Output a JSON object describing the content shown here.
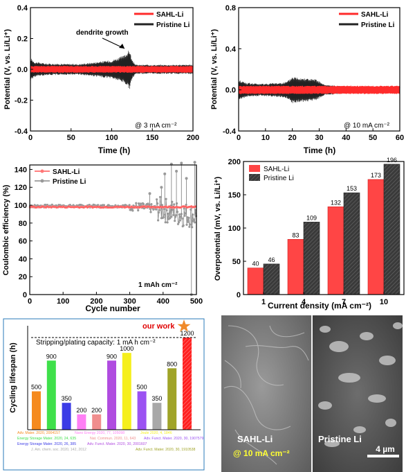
{
  "chart_data": [
    {
      "type": "line",
      "ylabel": "Potential (V, vs. Li/Li⁺)",
      "xlabel": "Time (h)",
      "xlim": [
        0,
        200
      ],
      "ylim": [
        -0.4,
        0.4
      ],
      "xticks": [
        "0",
        "50",
        "100",
        "150",
        "200"
      ],
      "yticks": [
        "-0.4",
        "-0.2",
        "0.0",
        "0.2",
        "0.4"
      ],
      "legend": "top-right",
      "series": [
        {
          "name": "SAHL-Li",
          "color": "#ff2b2b",
          "envelope_amplitude": {
            "x": [
              0,
              50,
              100,
              150,
              200
            ],
            "y": [
              0.022,
              0.022,
              0.022,
              0.022,
              0.022
            ]
          }
        },
        {
          "name": "Pristine Li",
          "color": "#222222",
          "envelope_amplitude": {
            "x": [
              0,
              5,
              20,
              60,
              100,
              115,
              122,
              125,
              130,
              160,
              200
            ],
            "y": [
              0.075,
              0.05,
              0.038,
              0.035,
              0.06,
              0.09,
              0.13,
              0.06,
              0.03,
              0.03,
              0.03
            ]
          }
        }
      ],
      "annotations": [
        "dendrite growth",
        "@ 3 mA cm⁻²"
      ]
    },
    {
      "type": "line",
      "ylabel": "Potential (V, vs. Li/Li⁺)",
      "xlabel": "Time (h)",
      "xlim": [
        0,
        60
      ],
      "ylim": [
        -0.4,
        0.8
      ],
      "xticks": [
        "0",
        "10",
        "20",
        "30",
        "40",
        "50",
        "60"
      ],
      "yticks": [
        "-0.4",
        "0.0",
        "0.4",
        "0.8"
      ],
      "legend": "top-right",
      "series": [
        {
          "name": "SAHL-Li",
          "color": "#ff2b2b",
          "envelope_amplitude": {
            "x": [
              0,
              60
            ],
            "y": [
              0.04,
              0.04
            ]
          }
        },
        {
          "name": "Pristine Li",
          "color": "#222222",
          "envelope_amplitude": {
            "x": [
              0,
              3,
              8,
              15,
              18,
              20,
              24,
              29,
              32,
              40,
              60
            ],
            "y": [
              0.1,
              0.07,
              0.06,
              0.07,
              0.08,
              0.13,
              0.12,
              0.1,
              0.05,
              0.035,
              0.035
            ]
          }
        }
      ],
      "annotations": [
        "@ 10 mA cm⁻²"
      ]
    },
    {
      "type": "scatter",
      "ylabel": "Coulombic efficiency (%)",
      "xlabel": "Cycle number",
      "xlim": [
        0,
        500
      ],
      "ylim": [
        0,
        145
      ],
      "xticks": [
        "0",
        "100",
        "200",
        "300",
        "400",
        "500"
      ],
      "yticks": [
        "0",
        "20",
        "40",
        "60",
        "80",
        "100",
        "120",
        "140"
      ],
      "legend": "top-left",
      "series": [
        {
          "name": "SAHL-Li",
          "color": "#ff5555",
          "trend": {
            "x": [
              0,
              500
            ],
            "y": [
              98,
              98
            ]
          }
        },
        {
          "name": "Pristine Li",
          "color": "#888888",
          "trend": {
            "x": [
              0,
              300,
              350,
              400,
              450,
              500
            ],
            "y": [
              99,
              99,
              97,
              95,
              90,
              88
            ]
          },
          "spikes": {
            "x": [
              360,
              395,
              405,
              425,
              440,
              455,
              470,
              485,
              495
            ],
            "y": [
              113,
              120,
              135,
              146,
              138,
              147,
              130,
              0,
              148
            ]
          }
        }
      ],
      "annotations": [
        "1 mAh cm⁻²"
      ]
    },
    {
      "type": "bar",
      "ylabel": "Overpotential (mV, vs. Li/Li⁺)",
      "xlabel": "Current density (mA cm⁻²)",
      "categories": [
        "1",
        "4",
        "7",
        "10"
      ],
      "ylim": [
        0,
        200
      ],
      "yticks": [
        "0",
        "50",
        "100",
        "150",
        "200"
      ],
      "legend": "top-left",
      "series": [
        {
          "name": "SAHL-Li",
          "color": "#ff4545",
          "values": [
            40,
            83,
            132,
            173
          ]
        },
        {
          "name": "Pristine Li",
          "color": "#3a3a3a",
          "values": [
            46,
            109,
            153,
            196
          ]
        }
      ]
    },
    {
      "type": "bar",
      "ylabel": "Cycling lifespan (h)",
      "ylim": [
        0,
        1250
      ],
      "values": [
        500,
        900,
        350,
        200,
        200,
        900,
        1000,
        500,
        350,
        800,
        1200
      ],
      "colors": [
        "#f58a1e",
        "#3fe04a",
        "#3b3be6",
        "#ff7ff5",
        "#f08e8e",
        "#b04ce0",
        "#f5ef1c",
        "#9b52f2",
        "#a8a8a8",
        "#a0a428",
        "#ff2020"
      ],
      "reference_line": "Stripping/plating capacity: 1 mA h cm⁻²",
      "highlight": "our work",
      "references": [
        {
          "text": "Adv. Mater. 2020, 2004157",
          "color": "#f58a1e"
        },
        {
          "text": "Nano Energy 2020, 77, 105098",
          "color": "#ff7ff5"
        },
        {
          "text": "Joule 2020, 4, 1846",
          "color": "#f5ef1c"
        },
        {
          "text": "Energy Storage Mater. 2020, 24, 635",
          "color": "#3fe04a"
        },
        {
          "text": "Nat. Commun. 2020, 11, 643",
          "color": "#f08e8e"
        },
        {
          "text": "Adv. Funct. Mater. 2020, 30, 1907579",
          "color": "#9b52f2"
        },
        {
          "text": "Energy Storage Mater. 2020, 26, 385",
          "color": "#3b3be6"
        },
        {
          "text": "Adv. Funct. Mater. 2020, 30, 2001607",
          "color": "#b04ce0"
        },
        {
          "text": "J. Am. chem. soc. 2020, 142, 2012",
          "color": "#a8a8a8"
        },
        {
          "text": "Adv. Funct. Mater. 2020, 30, 1910538",
          "color": "#a0a428"
        }
      ]
    }
  ],
  "panel_e_values": [
    "500",
    "900",
    "350",
    "200",
    "200",
    "900",
    "1000",
    "500",
    "350",
    "800",
    "1200"
  ],
  "sem": {
    "left_label": "SAHL-Li",
    "left_sublabel": "@ 10 mA cm⁻²",
    "right_label": "Pristine Li",
    "scale_bar": "4 µm"
  }
}
